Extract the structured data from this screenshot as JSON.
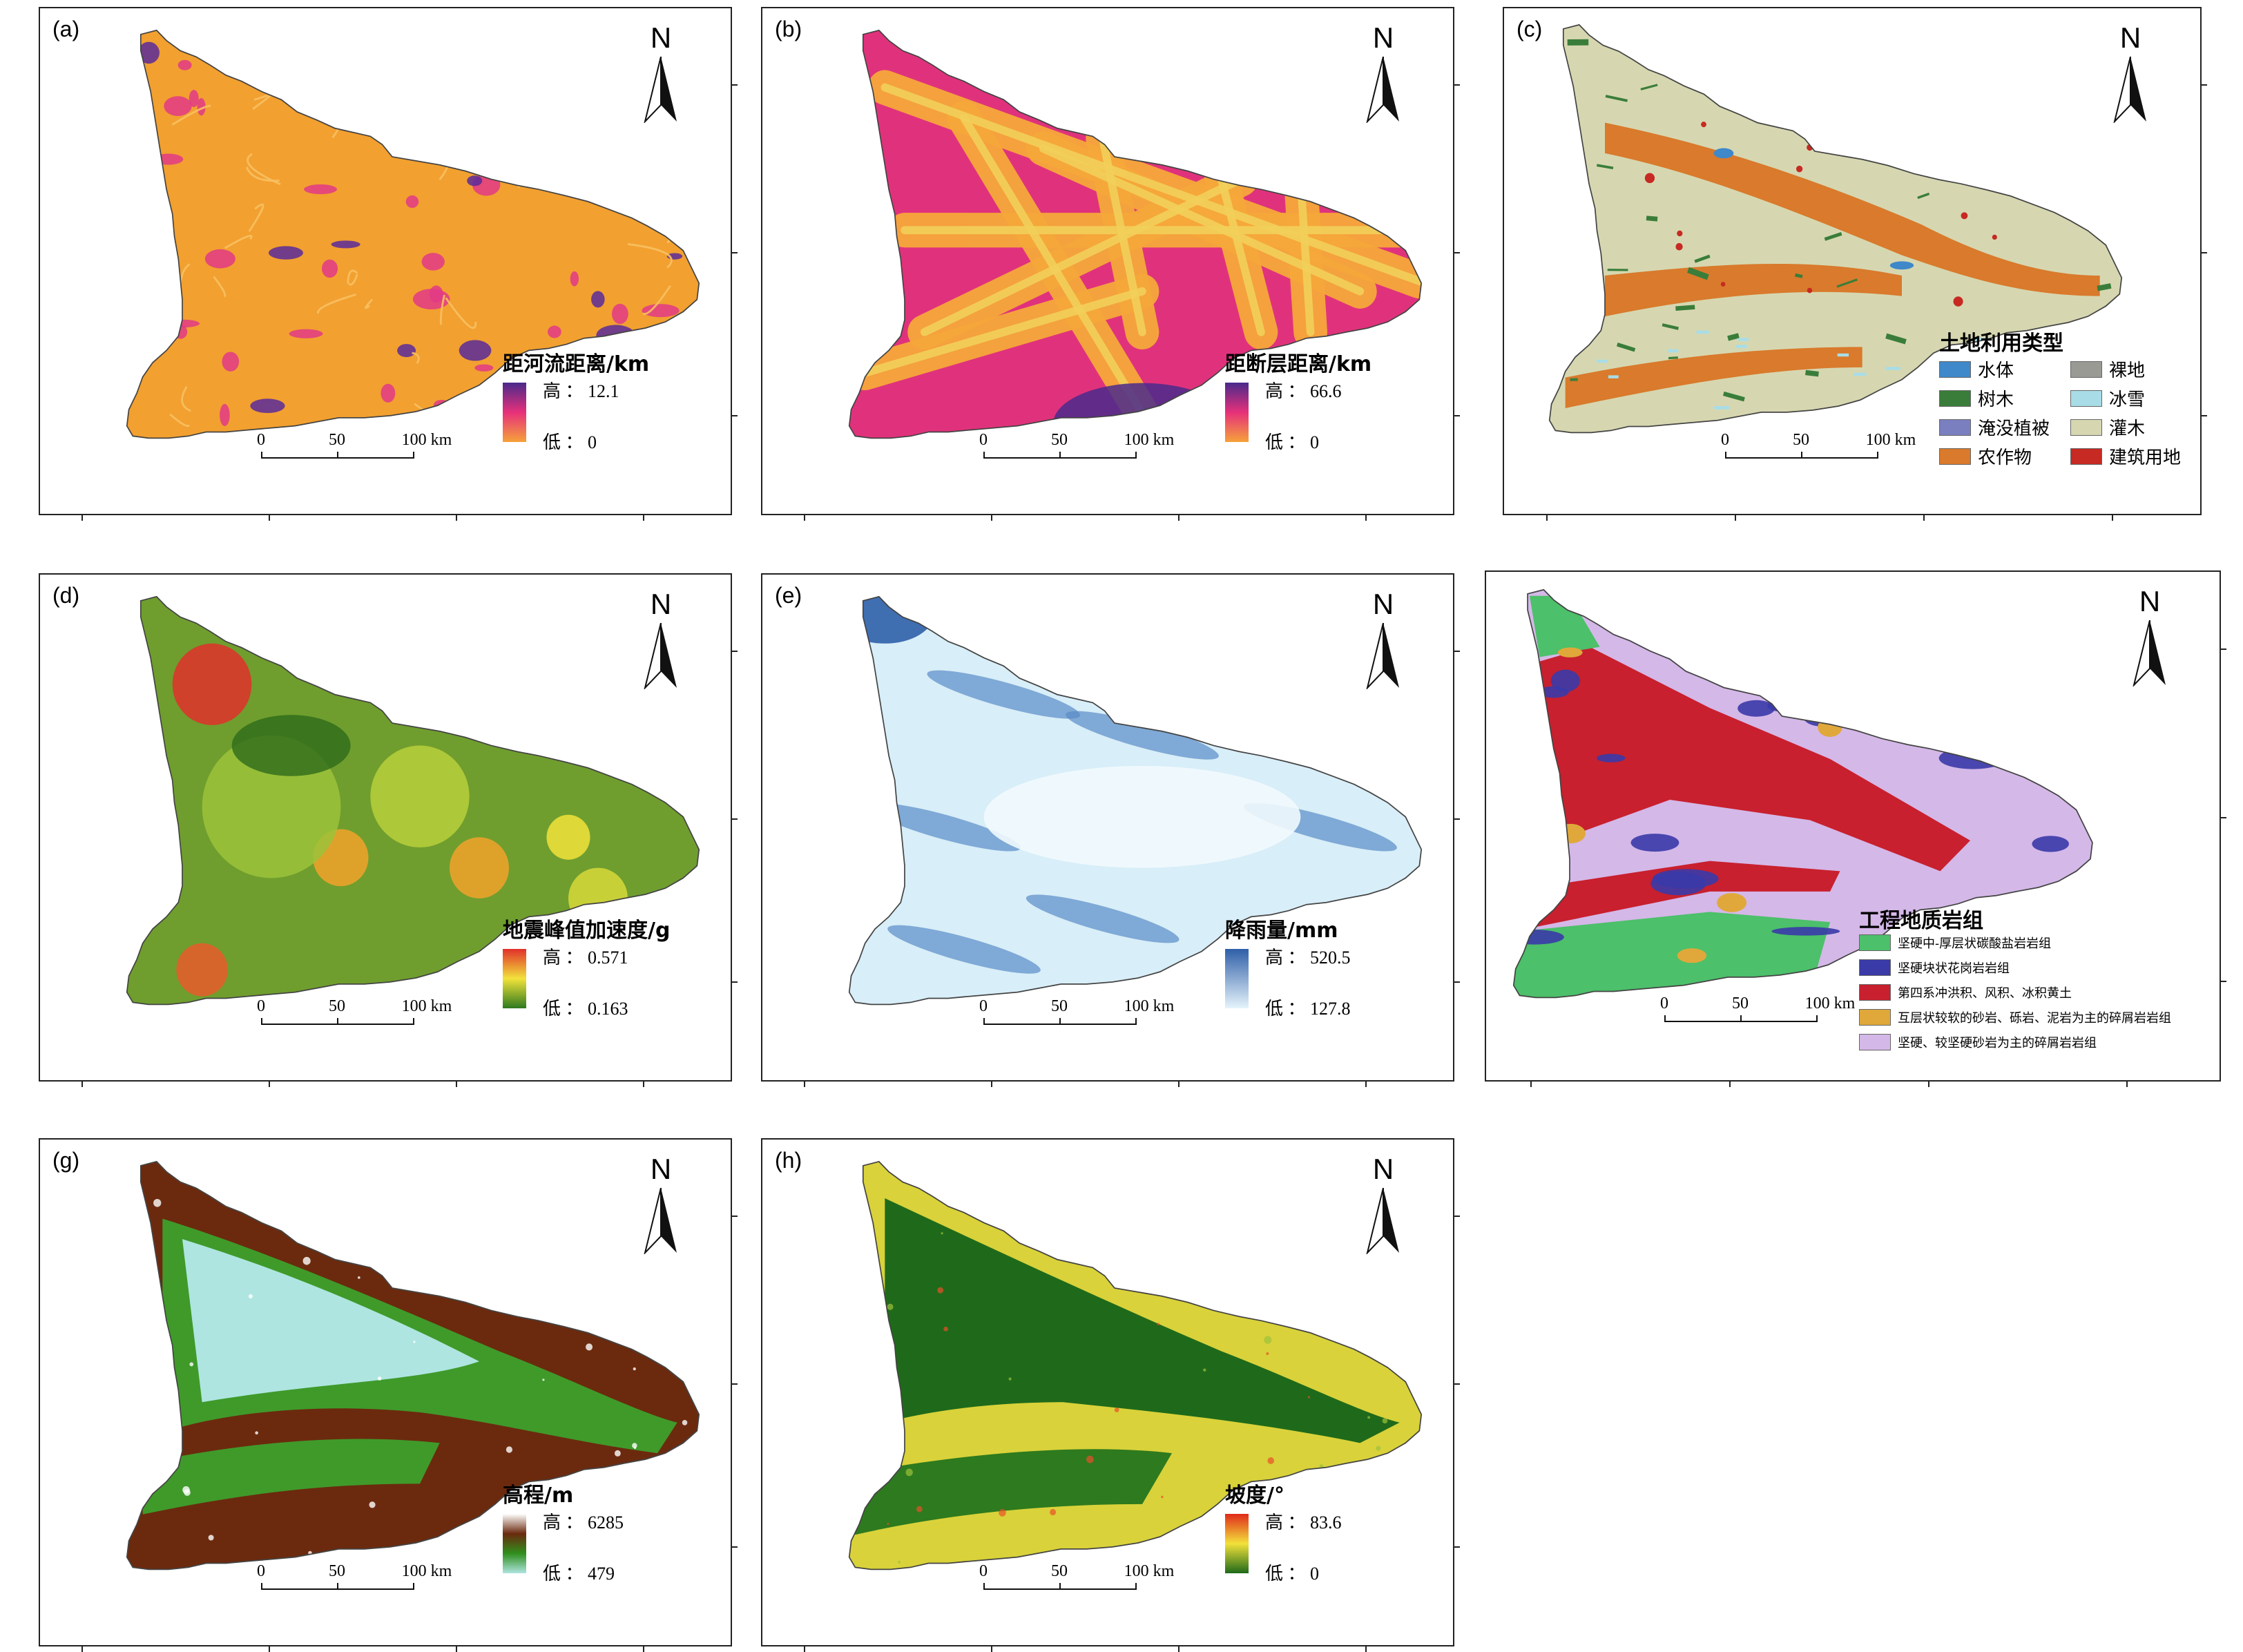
{
  "colors": {
    "frame": "#222222",
    "distance_ramp": [
      "#4a2a8c",
      "#e6307a",
      "#f6a23a"
    ],
    "pga_ramp": [
      "#e0302a",
      "#f2e23a",
      "#2e7a1e"
    ],
    "rain_ramp": [
      "#2f5fa8",
      "#e6f4fb"
    ],
    "elev_ramp": [
      "#ffffff",
      "#6b2a0e",
      "#2f8f1c",
      "#aee5e0"
    ],
    "slope_ramp": [
      "#e02a1a",
      "#f3e13a",
      "#1f6a1a"
    ]
  },
  "panels": [
    {
      "id": "a",
      "letter": "(a)",
      "style": "river",
      "north": "N",
      "legend": {
        "title": "距河流距离/km",
        "high_label": "高 ： 12.1",
        "low_label": "低 ： 0"
      },
      "scalebar": {
        "ticks": [
          "0",
          "50",
          "100 km"
        ]
      }
    },
    {
      "id": "b",
      "letter": "(b)",
      "style": "fault",
      "north": "N",
      "legend": {
        "title": "距断层距离/km",
        "high_label": "高 ： 66.6",
        "low_label": "低 ： 0"
      },
      "scalebar": {
        "ticks": [
          "0",
          "50",
          "100 km"
        ]
      }
    },
    {
      "id": "c",
      "letter": "(c)",
      "style": "landuse",
      "north": "N",
      "legend": {
        "title": "土地利用类型",
        "classes": [
          {
            "label": "水体",
            "color": "#3f88c9"
          },
          {
            "label": "裸地",
            "color": "#9a9a94"
          },
          {
            "label": "树木",
            "color": "#3a7d3a"
          },
          {
            "label": "冰雪",
            "color": "#a8dde8"
          },
          {
            "label": "淹没植被",
            "color": "#7a7fc0"
          },
          {
            "label": "灌木",
            "color": "#d6d7b0"
          },
          {
            "label": "农作物",
            "color": "#d97a2c"
          },
          {
            "label": "建筑用地",
            "color": "#c62a22"
          }
        ]
      },
      "scalebar": {
        "ticks": [
          "0",
          "50",
          "100 km"
        ]
      }
    },
    {
      "id": "d",
      "letter": "(d)",
      "style": "pga",
      "north": "N",
      "legend": {
        "title": "地震峰值加速度/g",
        "high_label": "高 ： 0.571",
        "low_label": "低 ： 0.163"
      },
      "scalebar": {
        "ticks": [
          "0",
          "50",
          "100 km"
        ]
      }
    },
    {
      "id": "e",
      "letter": "(e)",
      "style": "rain",
      "north": "N",
      "legend": {
        "title": "降雨量/mm",
        "high_label": "高 ： 520.5",
        "low_label": "低 ： 127.8"
      },
      "scalebar": {
        "ticks": [
          "0",
          "50",
          "100 km"
        ]
      }
    },
    {
      "id": "f",
      "letter": "",
      "style": "geology",
      "north": "N",
      "legend": {
        "title": "工程地质岩组",
        "classes": [
          {
            "label": "坚硬中-厚层状碳酸盐岩岩组",
            "color": "#4cc06a"
          },
          {
            "label": "坚硬块状花岗岩岩组",
            "color": "#3a3aa8"
          },
          {
            "label": "第四系冲洪积、风积、冰积黄土",
            "color": "#c8202e"
          },
          {
            "label": "互层状较软的砂岩、砾岩、泥岩为主的碎屑岩岩组",
            "color": "#e0a83a"
          },
          {
            "label": "坚硬、较坚硬砂岩为主的碎屑岩岩组",
            "color": "#d4b8e8"
          }
        ]
      },
      "scalebar": {
        "ticks": [
          "0",
          "50",
          "100 km"
        ]
      }
    },
    {
      "id": "g",
      "letter": "(g)",
      "style": "elev",
      "north": "N",
      "legend": {
        "title": "高程/m",
        "high_label": "高 ： 6285",
        "low_label": "低 ： 479"
      },
      "scalebar": {
        "ticks": [
          "0",
          "50",
          "100 km"
        ]
      }
    },
    {
      "id": "h",
      "letter": "(h)",
      "style": "slope",
      "north": "N",
      "legend": {
        "title": "坡度/°",
        "high_label": "高 ： 83.6",
        "low_label": "低 ： 0"
      },
      "scalebar": {
        "ticks": [
          "0",
          "50",
          "100 km"
        ]
      }
    }
  ]
}
